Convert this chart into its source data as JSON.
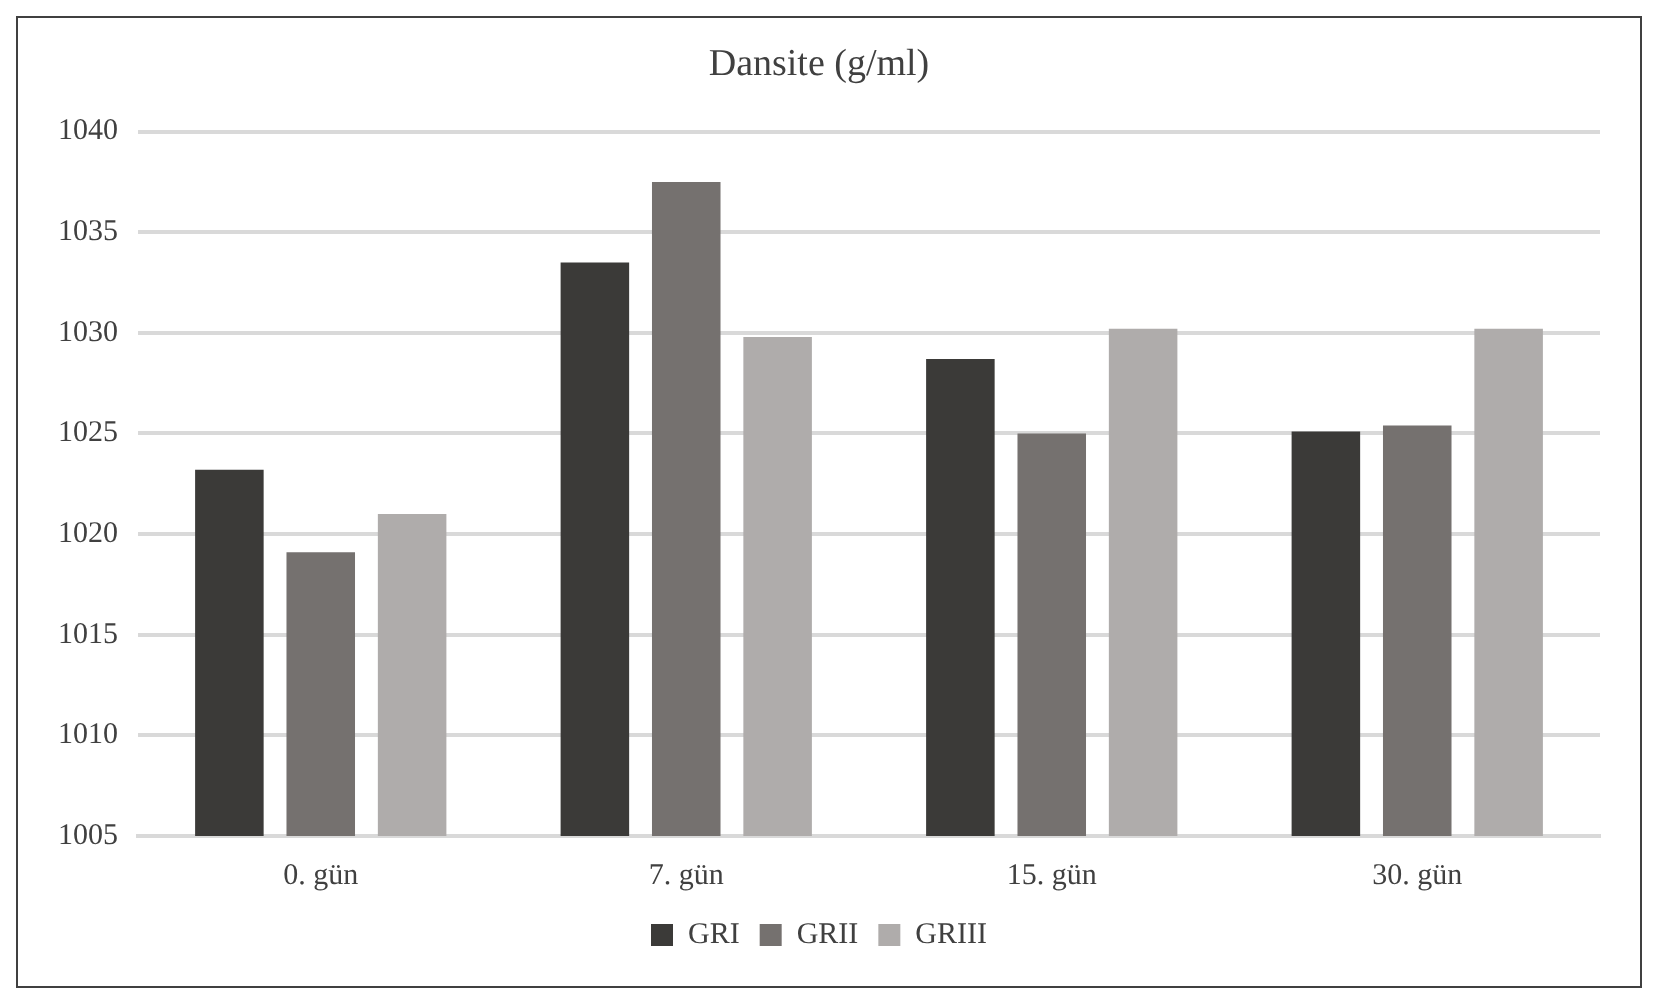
{
  "chart_data": {
    "type": "bar",
    "title": "Dansite (g/ml)",
    "categories": [
      "0. gün",
      "7. gün",
      "15. gün",
      "30. gün"
    ],
    "series": [
      {
        "name": "GRI",
        "color": "#3b3a38",
        "values": [
          1023.2,
          1033.5,
          1028.7,
          1025.1
        ]
      },
      {
        "name": "GRII",
        "color": "#75716f",
        "values": [
          1019.1,
          1037.5,
          1025.0,
          1025.4
        ]
      },
      {
        "name": "GRIII",
        "color": "#afacab",
        "values": [
          1021.0,
          1029.8,
          1030.2,
          1030.2
        ]
      }
    ],
    "ylim": [
      1005,
      1040
    ],
    "yticks": [
      1005,
      1010,
      1015,
      1020,
      1025,
      1030,
      1035,
      1040
    ],
    "grid": "y",
    "legend": "bottom"
  }
}
